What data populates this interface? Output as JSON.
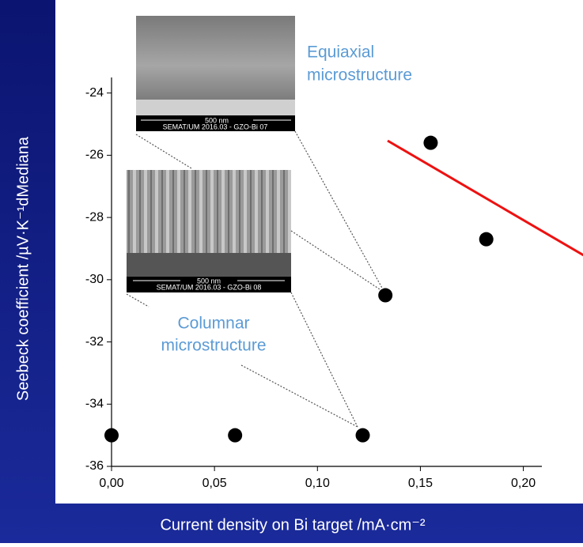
{
  "chart_data": {
    "type": "scatter",
    "x_label": "Current density on Bi target /mA·cm⁻²",
    "y_label": "Seebeck coefficient  /µV·K⁻¹dMediana",
    "x": [
      0,
      0.06,
      0.122,
      0.133,
      0.155,
      0.182
    ],
    "values": [
      -35,
      -35,
      -35,
      -30.5,
      -25.6,
      -28.7
    ],
    "color": "#000000",
    "xlim": [
      0,
      0.209
    ],
    "ylim": [
      -36,
      -23.5
    ],
    "xticks": [
      {
        "value": 0,
        "label": "0,00"
      },
      {
        "value": 0.05,
        "label": "0,05"
      },
      {
        "value": 0.1,
        "label": "0,10"
      },
      {
        "value": 0.15,
        "label": "0,15"
      },
      {
        "value": 0.2,
        "label": "0,20"
      }
    ],
    "yticks": [
      -36,
      -34,
      -32,
      -30,
      -28,
      -26,
      -24
    ],
    "annotations": [
      "Equiaxial",
      "microstructure",
      "Columnar",
      "microstructure"
    ],
    "sem_images": [
      {
        "scale": "500 nm",
        "caption": "SEMAT/UM 2016.03 - GZO-Bi 07"
      },
      {
        "scale": "500 nm",
        "caption": "SEMAT/UM 2016.03 - GZO-Bi 08"
      }
    ]
  }
}
